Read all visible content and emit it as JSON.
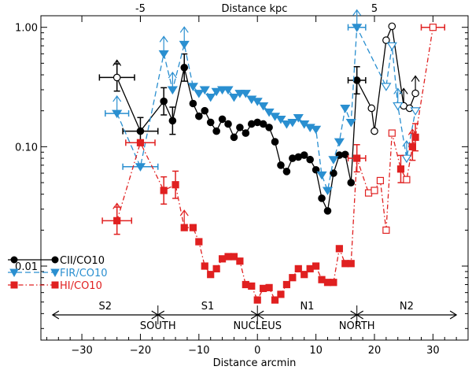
{
  "chart_data": {
    "type": "scatter",
    "x_axis": {
      "label": "Distance arcmin",
      "lim": [
        -37,
        36
      ],
      "ticks": [
        -30,
        -20,
        -10,
        0,
        10,
        20,
        30
      ]
    },
    "top_axis": {
      "label": "Distance kpc",
      "ticks": [
        {
          "label": "-5",
          "x": -20
        },
        {
          "label": "5",
          "x": 20
        }
      ]
    },
    "y_axis": {
      "scale": "log",
      "lim": [
        0.0024,
        1.25
      ],
      "ticks": [
        {
          "label": "1.00",
          "value": 1.0
        },
        {
          "label": "0.10",
          "value": 0.1
        },
        {
          "label": "0.01",
          "value": 0.01
        }
      ]
    },
    "legend": [
      {
        "name": "CII/CO10",
        "color": "#000000"
      },
      {
        "name": "FIR/CO10",
        "color": "#2a8fd0"
      },
      {
        "name": "HI/CO10",
        "color": "#e02020"
      }
    ],
    "regions": {
      "spans": [
        {
          "label": "S2",
          "from": -35,
          "to": -17
        },
        {
          "label": "S1",
          "from": -17,
          "to": 0
        },
        {
          "label": "N1",
          "from": 0,
          "to": 17
        },
        {
          "label": "N2",
          "from": 17,
          "to": 34
        }
      ],
      "named": [
        {
          "label": "SOUTH",
          "x": -17
        },
        {
          "label": "NUCLEUS",
          "x": 0
        },
        {
          "label": "NORTH",
          "x": 17
        }
      ]
    },
    "series": [
      {
        "name": "CII/CO10",
        "color": "#000000",
        "line": "solid",
        "marker": "circle",
        "points": [
          {
            "x": -24,
            "y": 0.38,
            "open": true,
            "xerr": 3,
            "yerr": true,
            "lim": true
          },
          {
            "x": -20,
            "y": 0.135,
            "xerr": 3,
            "yerr": true
          },
          {
            "x": -16,
            "y": 0.24,
            "yerr": true
          },
          {
            "x": -14.5,
            "y": 0.165,
            "yerr": true
          },
          {
            "x": -12.5,
            "y": 0.46,
            "yerr": true
          },
          {
            "x": -11,
            "y": 0.23
          },
          {
            "x": -10,
            "y": 0.18
          },
          {
            "x": -9,
            "y": 0.2
          },
          {
            "x": -8,
            "y": 0.16
          },
          {
            "x": -7,
            "y": 0.135
          },
          {
            "x": -6,
            "y": 0.17
          },
          {
            "x": -5,
            "y": 0.155
          },
          {
            "x": -4,
            "y": 0.12
          },
          {
            "x": -3,
            "y": 0.145
          },
          {
            "x": -2,
            "y": 0.13
          },
          {
            "x": -1,
            "y": 0.155
          },
          {
            "x": 0,
            "y": 0.16
          },
          {
            "x": 1,
            "y": 0.155
          },
          {
            "x": 2,
            "y": 0.145
          },
          {
            "x": 3,
            "y": 0.11
          },
          {
            "x": 4,
            "y": 0.07
          },
          {
            "x": 5,
            "y": 0.062
          },
          {
            "x": 6,
            "y": 0.08
          },
          {
            "x": 7,
            "y": 0.082
          },
          {
            "x": 8,
            "y": 0.085
          },
          {
            "x": 9,
            "y": 0.078
          },
          {
            "x": 10,
            "y": 0.064
          },
          {
            "x": 11,
            "y": 0.037
          },
          {
            "x": 12,
            "y": 0.029
          },
          {
            "x": 13,
            "y": 0.06
          },
          {
            "x": 14,
            "y": 0.085
          },
          {
            "x": 15,
            "y": 0.086
          },
          {
            "x": 16,
            "y": 0.05
          },
          {
            "x": 17,
            "y": 0.36,
            "yerr": true,
            "xerr": 1.5
          },
          {
            "x": 19.5,
            "y": 0.21,
            "open": true
          },
          {
            "x": 20,
            "y": 0.135,
            "open": true
          },
          {
            "x": 22,
            "y": 0.78,
            "open": true
          },
          {
            "x": 23,
            "y": 1.02,
            "open": true
          },
          {
            "x": 25,
            "y": 0.22,
            "open": true,
            "lim": true
          },
          {
            "x": 26,
            "y": 0.21,
            "open": true
          },
          {
            "x": 27,
            "y": 0.28,
            "open": true,
            "lim": true
          }
        ]
      },
      {
        "name": "FIR/CO10",
        "color": "#2a8fd0",
        "line": "dashed",
        "marker": "triangle-down",
        "points": [
          {
            "x": -24,
            "y": 0.19,
            "xerr": 2,
            "lim": true
          },
          {
            "x": -20,
            "y": 0.068,
            "xerr": 3
          },
          {
            "x": -16,
            "y": 0.6,
            "lim": true
          },
          {
            "x": -14.5,
            "y": 0.3,
            "lim": true
          },
          {
            "x": -12.5,
            "y": 0.72,
            "lim": true
          },
          {
            "x": -11,
            "y": 0.32
          },
          {
            "x": -10,
            "y": 0.28
          },
          {
            "x": -9,
            "y": 0.3
          },
          {
            "x": -8,
            "y": 0.26
          },
          {
            "x": -7,
            "y": 0.29
          },
          {
            "x": -6,
            "y": 0.3
          },
          {
            "x": -5,
            "y": 0.3
          },
          {
            "x": -4,
            "y": 0.26
          },
          {
            "x": -3,
            "y": 0.28
          },
          {
            "x": -2,
            "y": 0.28
          },
          {
            "x": -1,
            "y": 0.25
          },
          {
            "x": 0,
            "y": 0.24
          },
          {
            "x": 1,
            "y": 0.22
          },
          {
            "x": 2,
            "y": 0.195
          },
          {
            "x": 3,
            "y": 0.18
          },
          {
            "x": 4,
            "y": 0.17
          },
          {
            "x": 5,
            "y": 0.155
          },
          {
            "x": 6,
            "y": 0.16
          },
          {
            "x": 7,
            "y": 0.175
          },
          {
            "x": 8,
            "y": 0.155
          },
          {
            "x": 9,
            "y": 0.145
          },
          {
            "x": 10,
            "y": 0.14
          },
          {
            "x": 11,
            "y": 0.058
          },
          {
            "x": 12,
            "y": 0.043
          },
          {
            "x": 13,
            "y": 0.078
          },
          {
            "x": 14,
            "y": 0.11
          },
          {
            "x": 15,
            "y": 0.21
          },
          {
            "x": 16,
            "y": 0.16
          },
          {
            "x": 17,
            "y": 1.0,
            "xerr": 1.5,
            "lim": true
          },
          {
            "x": 22,
            "y": 0.32,
            "open": true
          },
          {
            "x": 23,
            "y": 0.7,
            "open": true
          },
          {
            "x": 24,
            "y": 0.22,
            "open": true,
            "lim": true
          },
          {
            "x": 25.5,
            "y": 0.08,
            "open": true,
            "lim": true
          },
          {
            "x": 27,
            "y": 0.2,
            "open": true
          }
        ]
      },
      {
        "name": "HI/CO10",
        "color": "#e02020",
        "line": "dashdot",
        "marker": "square",
        "points": [
          {
            "x": -24,
            "y": 0.024,
            "xerr": 2.5,
            "yerr": true,
            "lim": true
          },
          {
            "x": -20,
            "y": 0.108,
            "xerr": 2.5
          },
          {
            "x": -16,
            "y": 0.043,
            "yerr": true
          },
          {
            "x": -14,
            "y": 0.048,
            "yerr": true
          },
          {
            "x": -12.5,
            "y": 0.021,
            "lim": true
          },
          {
            "x": -11,
            "y": 0.021
          },
          {
            "x": -10,
            "y": 0.016
          },
          {
            "x": -9,
            "y": 0.01
          },
          {
            "x": -8,
            "y": 0.0085
          },
          {
            "x": -7,
            "y": 0.0095
          },
          {
            "x": -6,
            "y": 0.0115
          },
          {
            "x": -5,
            "y": 0.012
          },
          {
            "x": -4,
            "y": 0.012
          },
          {
            "x": -3,
            "y": 0.011
          },
          {
            "x": -2,
            "y": 0.007
          },
          {
            "x": -1,
            "y": 0.0068
          },
          {
            "x": 0,
            "y": 0.0052
          },
          {
            "x": 1,
            "y": 0.0065
          },
          {
            "x": 2,
            "y": 0.0066
          },
          {
            "x": 3,
            "y": 0.0052
          },
          {
            "x": 4,
            "y": 0.0058
          },
          {
            "x": 5,
            "y": 0.007
          },
          {
            "x": 6,
            "y": 0.008
          },
          {
            "x": 7,
            "y": 0.0095
          },
          {
            "x": 8,
            "y": 0.0085
          },
          {
            "x": 9,
            "y": 0.0095
          },
          {
            "x": 10,
            "y": 0.01
          },
          {
            "x": 11,
            "y": 0.0077
          },
          {
            "x": 12,
            "y": 0.0073
          },
          {
            "x": 13,
            "y": 0.0073
          },
          {
            "x": 14,
            "y": 0.014
          },
          {
            "x": 15,
            "y": 0.0105
          },
          {
            "x": 16,
            "y": 0.0105
          },
          {
            "x": 17,
            "y": 0.08,
            "yerr": true,
            "xerr": 1.5
          },
          {
            "x": 19,
            "y": 0.041,
            "open": true
          },
          {
            "x": 20,
            "y": 0.043,
            "open": true
          },
          {
            "x": 21,
            "y": 0.052,
            "open": true
          },
          {
            "x": 22,
            "y": 0.02,
            "open": true
          },
          {
            "x": 23,
            "y": 0.13,
            "open": true
          },
          {
            "x": 24.5,
            "y": 0.065,
            "yerr": true
          },
          {
            "x": 25.5,
            "y": 0.053,
            "open": true
          },
          {
            "x": 26.5,
            "y": 0.1,
            "yerr": true,
            "lim": true
          },
          {
            "x": 27,
            "y": 0.12,
            "yerr": true
          },
          {
            "x": 30,
            "y": 1.0,
            "open": true,
            "xerr": 2
          }
        ]
      }
    ]
  }
}
